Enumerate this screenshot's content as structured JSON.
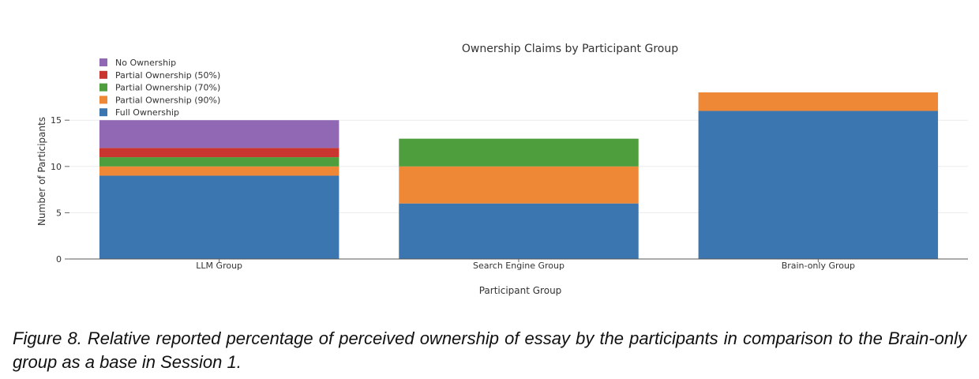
{
  "chart_data": {
    "type": "bar",
    "stacked": true,
    "title": "Ownership Claims by Participant Group",
    "xlabel": "Participant Group",
    "ylabel": "Number of Participants",
    "categories": [
      "LLM Group",
      "Search Engine Group",
      "Brain-only Group"
    ],
    "ylim": [
      0,
      18.6
    ],
    "yticks": [
      0,
      5,
      10,
      15
    ],
    "grid": true,
    "legend_position": "top-left",
    "series": [
      {
        "name": "Full Ownership",
        "color": "#3c76b0",
        "values": [
          9,
          6,
          16
        ]
      },
      {
        "name": "Partial Ownership (90%)",
        "color": "#ee8836",
        "values": [
          1,
          4,
          2
        ]
      },
      {
        "name": "Partial Ownership (70%)",
        "color": "#4f9e3d",
        "values": [
          1,
          3,
          0
        ]
      },
      {
        "name": "Partial Ownership (50%)",
        "color": "#c9352f",
        "values": [
          1,
          0,
          0
        ]
      },
      {
        "name": "No Ownership",
        "color": "#9068b4",
        "values": [
          3,
          0,
          0
        ]
      }
    ]
  },
  "caption": "Figure 8. Relative reported percentage of perceived ownership of essay by the participants in comparison to the Brain-only group as a base in Session 1."
}
